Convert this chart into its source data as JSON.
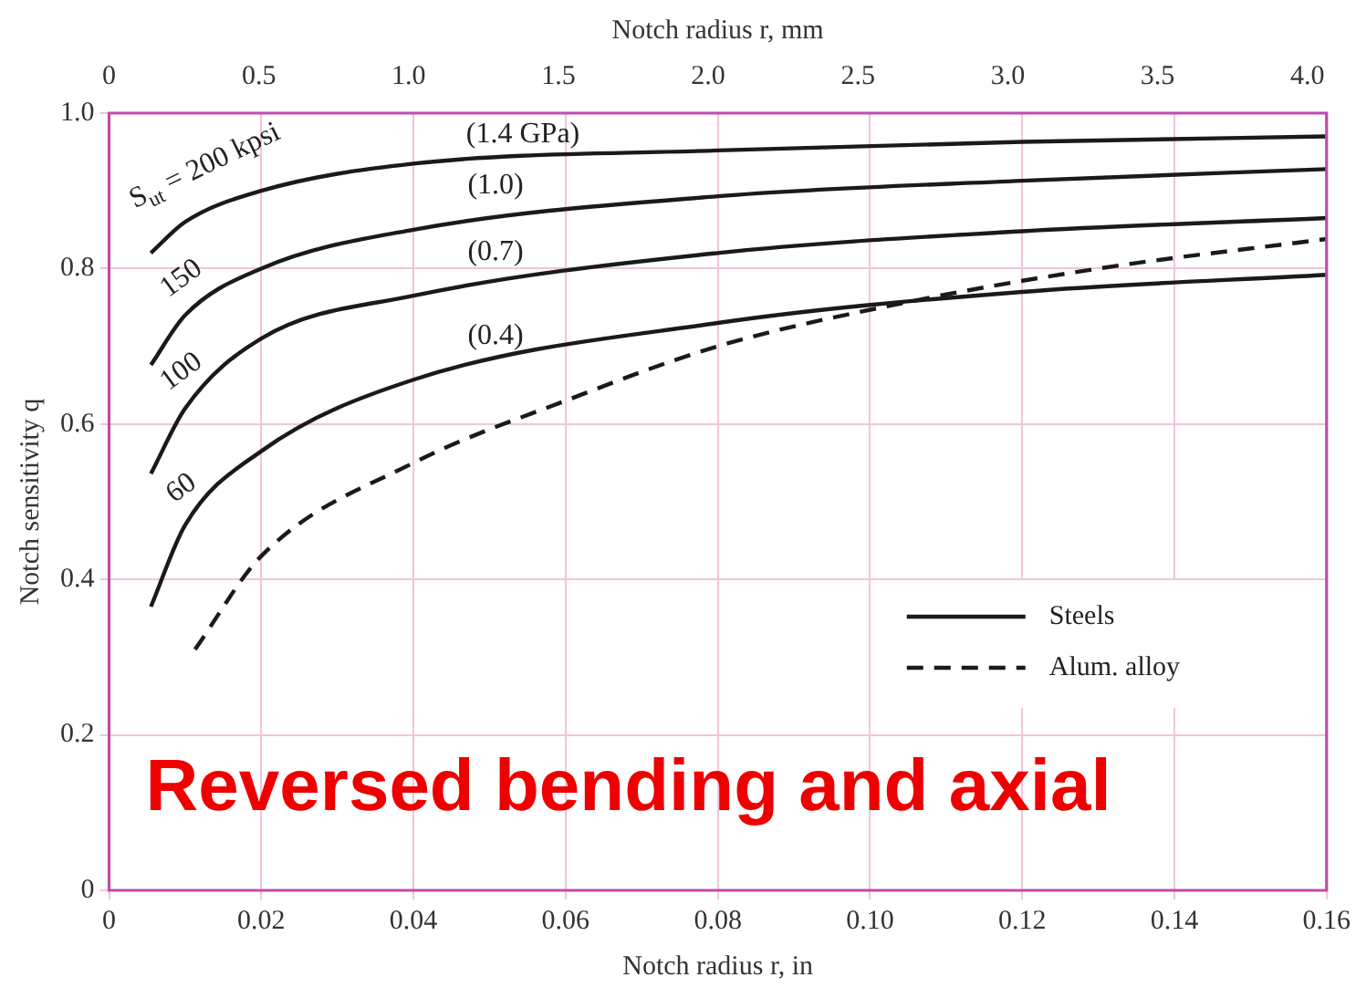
{
  "chart_data": {
    "type": "line",
    "xlabel": "Notch radius r, in",
    "ylabel": "Notch sensitivity q",
    "x2label": "Notch radius r, mm",
    "xlim": [
      0,
      0.16
    ],
    "xticks": [
      0,
      0.02,
      0.04,
      0.06,
      0.08,
      {
        "value": 0.1,
        "label": "0.10"
      },
      0.12,
      0.14,
      0.16
    ],
    "x2lim": [
      0,
      4.064
    ],
    "x2ticks": [
      0,
      0.5,
      {
        "value": 1,
        "label": "1.0"
      },
      1.5,
      {
        "value": 2,
        "label": "2.0"
      },
      2.5,
      {
        "value": 3,
        "label": "3.0"
      },
      3.5,
      {
        "value": 4,
        "label": "4.0"
      }
    ],
    "ylim": [
      0,
      1
    ],
    "yticks": [
      0,
      0.2,
      0.4,
      0.6,
      0.8,
      {
        "value": 1,
        "label": "1.0"
      }
    ],
    "grid": true,
    "legend": "bottom right",
    "series": [
      {
        "name": "Steels",
        "color": "#1a1a1a",
        "line_style": "solid",
        "x": [
          0.0055,
          0.01,
          0.02,
          0.04,
          0.08,
          0.12,
          0.16
        ],
        "values": [
          0.82,
          0.86,
          0.9,
          0.935,
          0.952,
          0.963,
          0.97
        ]
      },
      {
        "color": "#1a1a1a",
        "line_style": "solid",
        "x": [
          0.0055,
          0.01,
          0.02,
          0.04,
          0.08,
          0.12,
          0.16
        ],
        "values": [
          0.676,
          0.74,
          0.8,
          0.85,
          0.893,
          0.913,
          0.928
        ]
      },
      {
        "color": "#1a1a1a",
        "line_style": "solid",
        "x": [
          0.0055,
          0.01,
          0.02,
          0.04,
          0.08,
          0.12,
          0.16
        ],
        "values": [
          0.536,
          0.62,
          0.71,
          0.765,
          0.82,
          0.848,
          0.865
        ]
      },
      {
        "color": "#1a1a1a",
        "line_style": "solid",
        "x": [
          0.0055,
          0.01,
          0.02,
          0.04,
          0.08,
          0.12,
          0.16
        ],
        "values": [
          0.365,
          0.47,
          0.565,
          0.657,
          0.73,
          0.77,
          0.792
        ]
      },
      {
        "name": "Alum. alloy",
        "color": "#1a1a1a",
        "line_style": "dashed",
        "x": [
          0.0113,
          0.02,
          0.04,
          0.06,
          0.08,
          0.104,
          0.13,
          0.16
        ],
        "values": [
          0.31,
          0.43,
          0.55,
          0.63,
          0.7,
          0.755,
          0.8,
          0.838
        ]
      }
    ],
    "annotations": [
      "S$_{ut}$ = 200 kpsi",
      "150",
      "100",
      "60",
      "(1.4 GPa)",
      "(1.0)",
      "(0.7)",
      "(0.4)",
      "Reversed bending and axial"
    ]
  }
}
